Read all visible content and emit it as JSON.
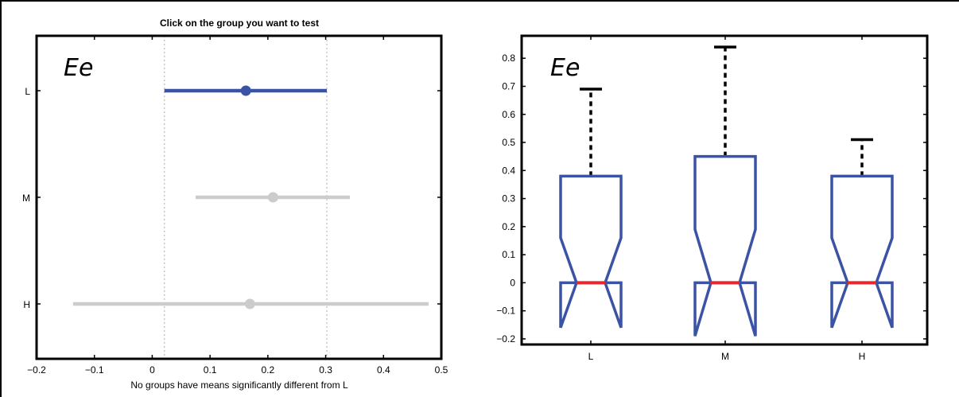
{
  "chart_data": [
    {
      "type": "scatter",
      "subtype": "multiple-comparison-intervals",
      "title": "Click on the group you want to test",
      "panel_label": "Ee",
      "xlabel": "No groups have means significantly different from L",
      "ylabel": "",
      "xlim": [
        -0.2,
        0.5
      ],
      "x_ticks": [
        "−0.2",
        "−0.1",
        "0",
        "0.1",
        "0.2",
        "0.3",
        "0.4",
        "0.5"
      ],
      "x_tick_values": [
        -0.2,
        -0.1,
        0,
        0.1,
        0.2,
        0.3,
        0.4,
        0.5
      ],
      "categories": [
        "L",
        "M",
        "H"
      ],
      "reference_lines": [
        0.021,
        0.302
      ],
      "series": [
        {
          "group": "L",
          "mean": 0.162,
          "low": 0.021,
          "high": 0.302,
          "selected": true,
          "color": "#3a53a4"
        },
        {
          "group": "M",
          "mean": 0.209,
          "low": 0.075,
          "high": 0.342,
          "selected": false,
          "color": "#cccccc"
        },
        {
          "group": "H",
          "mean": 0.169,
          "low": -0.137,
          "high": 0.478,
          "selected": false,
          "color": "#cccccc"
        }
      ],
      "grid": false
    },
    {
      "type": "box",
      "panel_label": "Ee",
      "title": "",
      "xlabel": "",
      "ylabel": "",
      "ylim": [
        -0.22,
        0.88
      ],
      "y_ticks": [
        "0.8",
        "0.7",
        "0.6",
        "0.5",
        "0.4",
        "0.3",
        "0.2",
        "0.1",
        "0",
        "−0.1",
        "−0.2"
      ],
      "y_tick_values": [
        0.8,
        0.7,
        0.6,
        0.5,
        0.4,
        0.3,
        0.2,
        0.1,
        0,
        -0.1,
        -0.2
      ],
      "categories": [
        "L",
        "M",
        "H"
      ],
      "boxes": [
        {
          "group": "L",
          "q1": 0.0,
          "median": 0.0,
          "q3": 0.38,
          "whisker_high": 0.69,
          "notch_low": -0.16,
          "notch_high": 0.16
        },
        {
          "group": "M",
          "q1": 0.0,
          "median": 0.0,
          "q3": 0.45,
          "whisker_high": 0.84,
          "notch_low": -0.19,
          "notch_high": 0.19
        },
        {
          "group": "H",
          "q1": 0.0,
          "median": 0.0,
          "q3": 0.38,
          "whisker_high": 0.51,
          "notch_low": -0.16,
          "notch_high": 0.16
        }
      ],
      "box_color": "#3a53a4",
      "median_color": "#e8262b",
      "whisker_color": "#000000",
      "grid": false
    }
  ]
}
